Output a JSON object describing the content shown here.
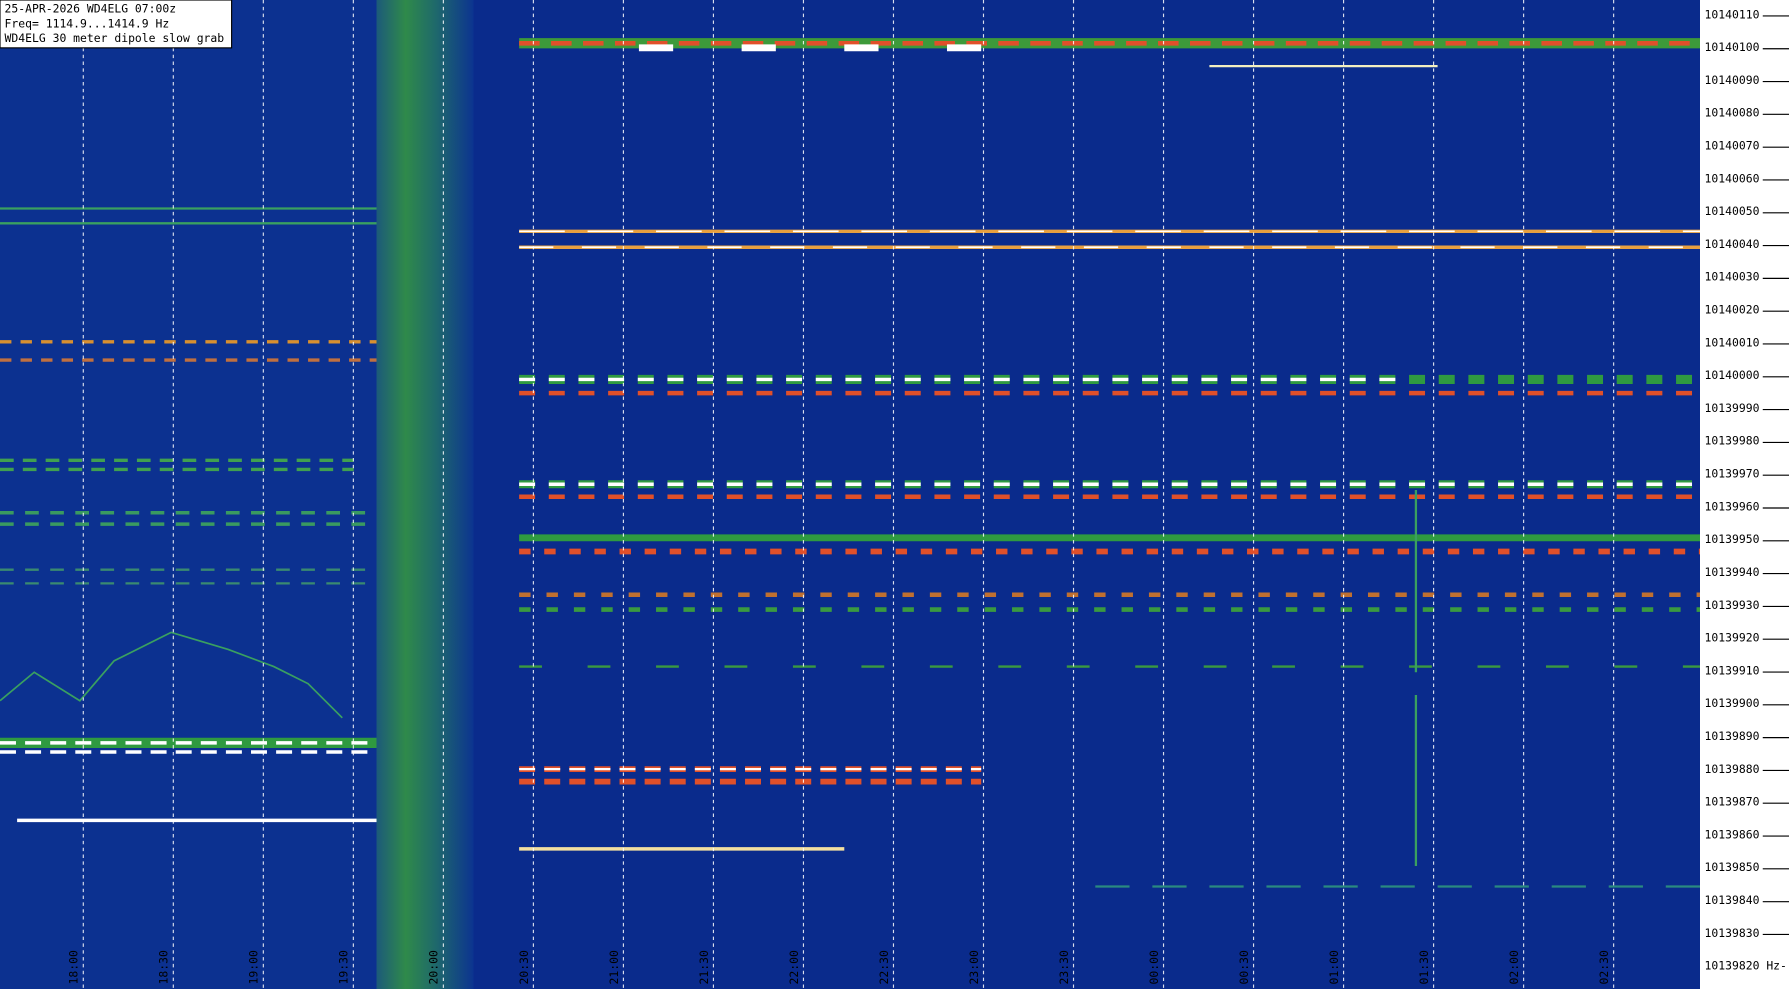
{
  "header": {
    "date_line": "25-APR-2026  WD4ELG  07:00z",
    "freq_line": "Freq= 1114.9...1414.9 Hz",
    "station_line": "WD4ELG 30 meter dipole slow grab"
  },
  "freq_axis": {
    "ticks": [
      10140110,
      10140100,
      10140090,
      10140080,
      10140070,
      10140060,
      10140050,
      10140040,
      10140030,
      10140020,
      10140010,
      10140000,
      10139990,
      10139980,
      10139970,
      10139960,
      10139950,
      10139940,
      10139930,
      10139920,
      10139910,
      10139900,
      10139890,
      10139880,
      10139870,
      10139860,
      10139850,
      10139840,
      10139830
    ],
    "bottom_label": "10139820 Hz-"
  },
  "time_axis": {
    "labels": [
      "18:00",
      "18:30",
      "19:00",
      "19:30",
      "20:00",
      "20:30",
      "21:00",
      "21:30",
      "22:00",
      "22:30",
      "23:00",
      "23:30",
      "00:00",
      "00:30",
      "01:00",
      "01:30",
      "02:00",
      "02:30"
    ]
  }
}
